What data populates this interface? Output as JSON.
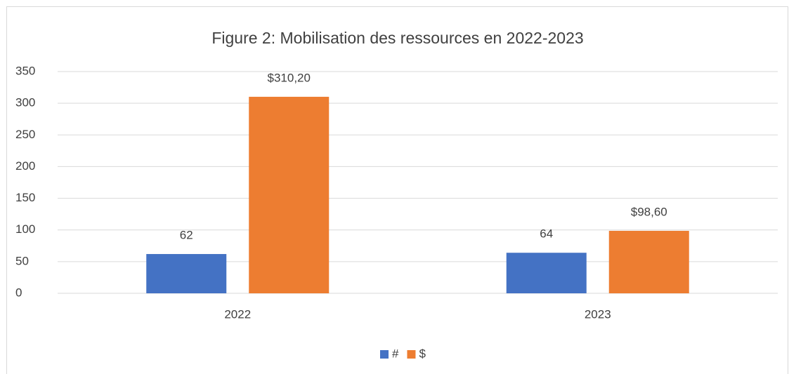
{
  "chart_data": {
    "type": "bar",
    "title": "Figure 2: Mobilisation des ressources en 2022-2023",
    "categories": [
      "2022",
      "2023"
    ],
    "series": [
      {
        "name": "#",
        "color": "#4472c4",
        "values": [
          62,
          64
        ]
      },
      {
        "name": "$",
        "color": "#ed7d31",
        "values": [
          310.2,
          98.6
        ],
        "value_labels": [
          "$310,20",
          "$98,60"
        ]
      }
    ],
    "ylim": [
      0,
      350
    ],
    "yticks": [
      0,
      50,
      100,
      150,
      200,
      250,
      300,
      350
    ],
    "grid": true,
    "legend": "bottom"
  }
}
